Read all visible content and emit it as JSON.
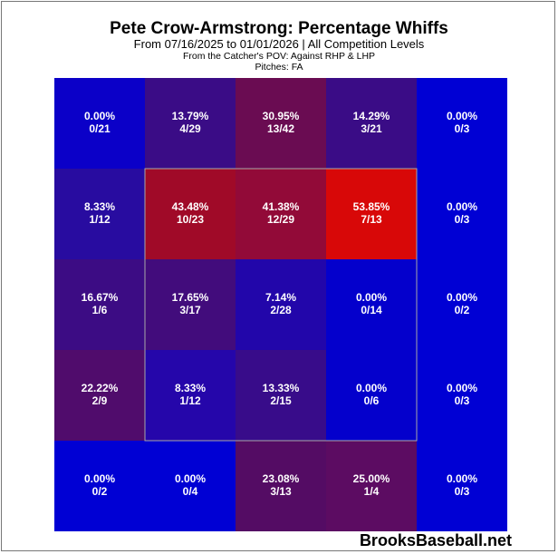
{
  "title": "Pete Crow-Armstrong: Percentage Whiffs",
  "subtitle": "From 07/16/2025 to 01/01/2026 | All Competition Levels",
  "pov_line": "From the Catcher's POV:   Against RHP & LHP",
  "pitches_line": "Pitches:  FA",
  "watermark": "BrooksBaseball.net",
  "chart_data": {
    "type": "heatmap",
    "title": "Pete Crow-Armstrong: Percentage Whiffs",
    "strike_zone": {
      "rows": [
        1,
        3
      ],
      "cols": [
        1,
        3
      ]
    },
    "cells": [
      [
        {
          "pct": "0.00%",
          "frac": "0/21",
          "color": "#0b00c8"
        },
        {
          "pct": "13.79%",
          "frac": "4/29",
          "color": "#3a0c86"
        },
        {
          "pct": "30.95%",
          "frac": "13/42",
          "color": "#6a0c52"
        },
        {
          "pct": "14.29%",
          "frac": "3/21",
          "color": "#3a0c86"
        },
        {
          "pct": "0.00%",
          "frac": "0/3",
          "color": "#0000d4"
        }
      ],
      [
        {
          "pct": "8.33%",
          "frac": "1/12",
          "color": "#280ca0"
        },
        {
          "pct": "43.48%",
          "frac": "10/23",
          "color": "#a00a28"
        },
        {
          "pct": "41.38%",
          "frac": "12/29",
          "color": "#920a38"
        },
        {
          "pct": "53.85%",
          "frac": "7/13",
          "color": "#d80808"
        },
        {
          "pct": "0.00%",
          "frac": "0/3",
          "color": "#0000d4"
        }
      ],
      [
        {
          "pct": "16.67%",
          "frac": "1/6",
          "color": "#3c0c84"
        },
        {
          "pct": "17.65%",
          "frac": "3/17",
          "color": "#420c7c"
        },
        {
          "pct": "7.14%",
          "frac": "2/28",
          "color": "#2206aa"
        },
        {
          "pct": "0.00%",
          "frac": "0/14",
          "color": "#0400cc"
        },
        {
          "pct": "0.00%",
          "frac": "0/2",
          "color": "#0000d4"
        }
      ],
      [
        {
          "pct": "22.22%",
          "frac": "2/9",
          "color": "#500c6c"
        },
        {
          "pct": "8.33%",
          "frac": "1/12",
          "color": "#2506aa"
        },
        {
          "pct": "13.33%",
          "frac": "2/15",
          "color": "#380c8a"
        },
        {
          "pct": "0.00%",
          "frac": "0/6",
          "color": "#0400cc"
        },
        {
          "pct": "0.00%",
          "frac": "0/3",
          "color": "#0000d4"
        }
      ],
      [
        {
          "pct": "0.00%",
          "frac": "0/2",
          "color": "#0000d4"
        },
        {
          "pct": "0.00%",
          "frac": "0/4",
          "color": "#0000d4"
        },
        {
          "pct": "23.08%",
          "frac": "3/13",
          "color": "#540c64"
        },
        {
          "pct": "25.00%",
          "frac": "1/4",
          "color": "#5c0c62"
        },
        {
          "pct": "0.00%",
          "frac": "0/3",
          "color": "#0000d4"
        }
      ]
    ]
  }
}
